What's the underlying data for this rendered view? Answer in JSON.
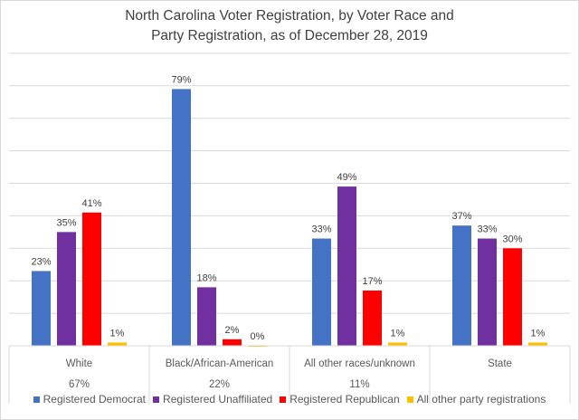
{
  "chart_data": {
    "type": "bar",
    "title_lines": [
      "North Carolina Voter Registration, by Voter Race and",
      "Party Registration, as of December 28, 2019"
    ],
    "categories": [
      "White",
      "Black/African-American",
      "All other races/unknown",
      "State"
    ],
    "category_shares": [
      "67%",
      "22%",
      "11%",
      ""
    ],
    "series": [
      {
        "name": "Registered Democrat",
        "color": "#4472c4",
        "values": [
          23,
          79,
          33,
          37
        ]
      },
      {
        "name": "Registered Unaffiliated",
        "color": "#7030a0",
        "values": [
          35,
          18,
          49,
          33
        ]
      },
      {
        "name": "Registered Republican",
        "color": "#ff0000",
        "values": [
          41,
          2,
          17,
          30
        ]
      },
      {
        "name": "All other party registrations",
        "color": "#ffc000",
        "values": [
          1,
          0,
          1,
          1
        ]
      }
    ],
    "ylim": [
      0,
      90
    ],
    "grid": true,
    "legend_position": "bottom",
    "value_suffix": "%"
  }
}
